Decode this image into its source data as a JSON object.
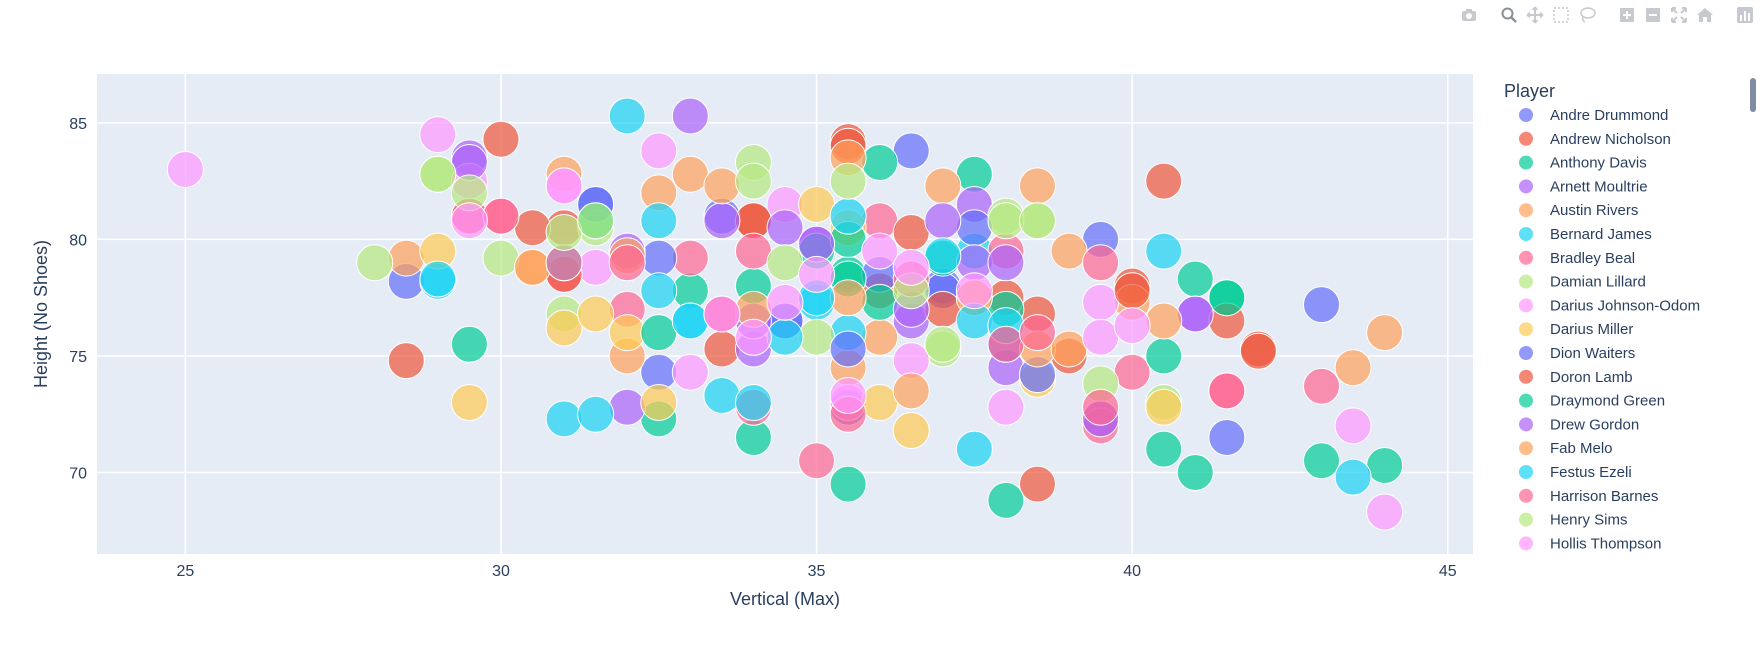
{
  "modebar": {
    "buttons": [
      {
        "icon": "camera-icon",
        "name": "download-png-button"
      },
      {
        "icon": "zoom-icon",
        "name": "zoom-button"
      },
      {
        "icon": "pan-icon",
        "name": "pan-button"
      },
      {
        "icon": "box-select-icon",
        "name": "box-select-button"
      },
      {
        "icon": "lasso-select-icon",
        "name": "lasso-select-button"
      },
      {
        "icon": "zoom-in-icon",
        "name": "zoom-in-button"
      },
      {
        "icon": "zoom-out-icon",
        "name": "zoom-out-button"
      },
      {
        "icon": "autoscale-icon",
        "name": "autoscale-button"
      },
      {
        "icon": "reset-axes-icon",
        "name": "reset-axes-button"
      },
      {
        "icon": "plotly-logo-icon",
        "name": "plotly-logo-link"
      }
    ]
  },
  "chart_data": {
    "type": "scatter",
    "xlabel": "Vertical (Max)",
    "ylabel": "Height (No Shoes)",
    "xlim": [
      23.6,
      45.4
    ],
    "ylim": [
      66.5,
      87.1
    ],
    "xticks": [
      25,
      30,
      35,
      40,
      45
    ],
    "yticks": [
      70,
      75,
      80,
      85
    ],
    "grid": true,
    "plot_bgcolor": "#E5ECF6",
    "legend": {
      "title": "Player",
      "placement": "right"
    },
    "series": [
      {
        "name": "Andre Drummond",
        "color": "#636EFA",
        "points": [
          [
            28.5,
            78.2
          ],
          [
            31.5,
            81.5
          ],
          [
            32.5,
            74.3
          ],
          [
            35.5,
            72.8
          ],
          [
            36.5,
            83.8
          ],
          [
            39.5,
            80
          ],
          [
            41.5,
            71.5
          ],
          [
            43,
            77.2
          ],
          [
            34.5,
            76.5
          ],
          [
            37,
            78
          ]
        ]
      },
      {
        "name": "Andrew Nicholson",
        "color": "#EF553B",
        "points": [
          [
            28.5,
            74.8
          ],
          [
            29.5,
            81
          ],
          [
            31,
            80.5
          ],
          [
            33.5,
            75.3
          ],
          [
            35.5,
            84.2
          ],
          [
            36,
            77.8
          ],
          [
            38.5,
            76.8
          ],
          [
            38.5,
            69.5
          ],
          [
            40,
            78
          ],
          [
            40.5,
            82.5
          ],
          [
            42,
            75.3
          ],
          [
            34,
            80.8
          ]
        ]
      },
      {
        "name": "Anthony Davis",
        "color": "#00CC96",
        "points": [
          [
            29.5,
            75.5
          ],
          [
            32.5,
            72.3
          ],
          [
            33,
            77.8
          ],
          [
            34,
            71.5
          ],
          [
            35.5,
            69.5
          ],
          [
            36,
            83.3
          ],
          [
            37.5,
            82.8
          ],
          [
            38,
            68.8
          ],
          [
            40.5,
            71
          ],
          [
            41,
            70
          ],
          [
            43,
            70.5
          ],
          [
            44,
            70.3
          ],
          [
            41.5,
            77.5
          ],
          [
            35.5,
            78.5
          ]
        ]
      },
      {
        "name": "Arnett Moultrie",
        "color": "#AB63FA",
        "points": [
          [
            29.5,
            83.5
          ],
          [
            33,
            85.3
          ],
          [
            32,
            72.8
          ],
          [
            34,
            75.3
          ],
          [
            36.5,
            76.5
          ],
          [
            37.5,
            81.5
          ],
          [
            38,
            74.5
          ],
          [
            39.5,
            72.3
          ],
          [
            41,
            76.8
          ],
          [
            35,
            79.8
          ]
        ]
      },
      {
        "name": "Austin Rivers",
        "color": "#FFA15A",
        "points": [
          [
            28.5,
            79.2
          ],
          [
            30.5,
            78.8
          ],
          [
            31,
            82.8
          ],
          [
            32.5,
            82
          ],
          [
            33,
            82.8
          ],
          [
            35.5,
            74.5
          ],
          [
            36,
            75.8
          ],
          [
            37,
            82.3
          ],
          [
            38.5,
            82.3
          ],
          [
            39,
            79.5
          ],
          [
            40,
            77.3
          ],
          [
            43.5,
            74.5
          ],
          [
            44,
            76
          ],
          [
            32,
            75
          ]
        ]
      },
      {
        "name": "Bernard James",
        "color": "#19D3F3",
        "points": [
          [
            29,
            78.2
          ],
          [
            31,
            72.3
          ],
          [
            31.5,
            72.5
          ],
          [
            32,
            85.3
          ],
          [
            32.5,
            80.8
          ],
          [
            33,
            76.5
          ],
          [
            33.5,
            73.3
          ],
          [
            35,
            77.3
          ],
          [
            35.5,
            76
          ],
          [
            37.5,
            71
          ],
          [
            43.5,
            69.8
          ],
          [
            40.5,
            79.5
          ],
          [
            37.5,
            79.5
          ]
        ]
      },
      {
        "name": "Bradley Beal",
        "color": "#FF6692",
        "points": [
          [
            30,
            81
          ],
          [
            31,
            78.5
          ],
          [
            32,
            77
          ],
          [
            33,
            79.2
          ],
          [
            34,
            72.8
          ],
          [
            35,
            70.5
          ],
          [
            36,
            80.8
          ],
          [
            38,
            79.5
          ],
          [
            39.5,
            79
          ],
          [
            40,
            74.3
          ],
          [
            41.5,
            73.5
          ],
          [
            43,
            73.7
          ],
          [
            39.5,
            72
          ]
        ]
      },
      {
        "name": "Damian Lillard",
        "color": "#B6E880",
        "points": [
          [
            28,
            79
          ],
          [
            29,
            82.8
          ],
          [
            30,
            79.2
          ],
          [
            31,
            76.8
          ],
          [
            31.5,
            80.5
          ],
          [
            34,
            83.3
          ],
          [
            35,
            75.8
          ],
          [
            37,
            75.3
          ],
          [
            38.5,
            80.8
          ],
          [
            39.5,
            73.8
          ],
          [
            40.5,
            73
          ],
          [
            38,
            81
          ]
        ]
      },
      {
        "name": "Darius Johnson-Odom",
        "color": "#FF97FF",
        "points": [
          [
            25,
            83
          ],
          [
            29,
            84.5
          ],
          [
            29.5,
            82.5
          ],
          [
            31,
            82.3
          ],
          [
            31.5,
            78.8
          ],
          [
            32.5,
            83.8
          ],
          [
            33,
            74.3
          ],
          [
            34.5,
            81.5
          ],
          [
            35.5,
            73
          ],
          [
            36.5,
            74.8
          ],
          [
            38,
            72.8
          ],
          [
            39.5,
            77.3
          ],
          [
            43.5,
            72
          ],
          [
            44,
            68.3
          ]
        ]
      },
      {
        "name": "Darius Miller",
        "color": "#FECB52",
        "points": [
          [
            29,
            79.5
          ],
          [
            29.5,
            73
          ],
          [
            31,
            76.2
          ],
          [
            31.5,
            76.8
          ],
          [
            32,
            76
          ],
          [
            32.5,
            73
          ],
          [
            35,
            81.5
          ],
          [
            36,
            73
          ],
          [
            36.5,
            71.8
          ],
          [
            37.5,
            77.5
          ],
          [
            38.5,
            74
          ],
          [
            40.5,
            72.8
          ],
          [
            35.5,
            80.5
          ]
        ]
      },
      {
        "name": "Dion Waiters",
        "color": "#636EFA",
        "points": [
          [
            31.5,
            81.5
          ],
          [
            32.5,
            79.2
          ],
          [
            33.5,
            81
          ],
          [
            34.5,
            76.5
          ],
          [
            35.5,
            75.3
          ],
          [
            36,
            78.5
          ],
          [
            37,
            77.8
          ],
          [
            37.5,
            80.5
          ],
          [
            38,
            75.5
          ],
          [
            38.5,
            74.2
          ]
        ]
      },
      {
        "name": "Doron Lamb",
        "color": "#EF553B",
        "points": [
          [
            30,
            84.3
          ],
          [
            30.5,
            80.5
          ],
          [
            31,
            78.5
          ],
          [
            33.5,
            76.8
          ],
          [
            34,
            80.8
          ],
          [
            35.5,
            84
          ],
          [
            36.5,
            80.3
          ],
          [
            37,
            77
          ],
          [
            38,
            77.5
          ],
          [
            39,
            75
          ],
          [
            41.5,
            76.5
          ],
          [
            42,
            75.2
          ],
          [
            40,
            77.8
          ]
        ]
      },
      {
        "name": "Draymond Green",
        "color": "#00CC96",
        "points": [
          [
            31.5,
            80.8
          ],
          [
            32.5,
            76
          ],
          [
            34,
            78
          ],
          [
            35,
            79.5
          ],
          [
            35.5,
            78.3
          ],
          [
            36,
            77.3
          ],
          [
            37,
            79.2
          ],
          [
            38,
            77
          ],
          [
            40.5,
            75
          ],
          [
            41,
            78.3
          ],
          [
            41.5,
            77.5
          ],
          [
            35.5,
            80
          ]
        ]
      },
      {
        "name": "Drew Gordon",
        "color": "#AB63FA",
        "points": [
          [
            29.5,
            83.3
          ],
          [
            32,
            79.5
          ],
          [
            33.5,
            80.8
          ],
          [
            34,
            76.5
          ],
          [
            34.5,
            80.5
          ],
          [
            35,
            79.8
          ],
          [
            36.5,
            77
          ],
          [
            37,
            80.8
          ],
          [
            37.5,
            79
          ],
          [
            38,
            79
          ],
          [
            39.5,
            72.3
          ],
          [
            41,
            76.8
          ]
        ]
      },
      {
        "name": "Fab Melo",
        "color": "#FFA15A",
        "points": [
          [
            30.5,
            78.8
          ],
          [
            32,
            79.3
          ],
          [
            33.5,
            82.3
          ],
          [
            34,
            77
          ],
          [
            35.5,
            77.5
          ],
          [
            35.5,
            83.5
          ],
          [
            36.5,
            73.5
          ],
          [
            37.5,
            77.5
          ],
          [
            38.5,
            75.3
          ],
          [
            40.5,
            76.5
          ],
          [
            39,
            75.3
          ]
        ]
      },
      {
        "name": "Festus Ezeli",
        "color": "#19D3F3",
        "points": [
          [
            29,
            78.3
          ],
          [
            31,
            79
          ],
          [
            32.5,
            77.8
          ],
          [
            33,
            76.5
          ],
          [
            34,
            73
          ],
          [
            34.5,
            75.8
          ],
          [
            35,
            77.5
          ],
          [
            35.5,
            81
          ],
          [
            37,
            79.3
          ],
          [
            37.5,
            76.5
          ],
          [
            38,
            76.3
          ]
        ]
      },
      {
        "name": "Harrison Barnes",
        "color": "#FF6692",
        "points": [
          [
            29.5,
            81
          ],
          [
            30,
            81
          ],
          [
            31,
            79
          ],
          [
            32,
            79
          ],
          [
            33.5,
            76.8
          ],
          [
            34,
            79.5
          ],
          [
            35.5,
            72.5
          ],
          [
            36.5,
            78.3
          ],
          [
            38,
            75.5
          ],
          [
            38.5,
            76
          ],
          [
            39.5,
            72.8
          ],
          [
            41.5,
            73.5
          ]
        ]
      },
      {
        "name": "Henry Sims",
        "color": "#B6E880",
        "points": [
          [
            29,
            82.8
          ],
          [
            29.5,
            82
          ],
          [
            31,
            80.3
          ],
          [
            31.5,
            80.8
          ],
          [
            34,
            82.5
          ],
          [
            34.5,
            79
          ],
          [
            35.5,
            82.5
          ],
          [
            36.5,
            77.8
          ],
          [
            37,
            75.5
          ],
          [
            38,
            80.8
          ],
          [
            38.5,
            80.8
          ]
        ]
      },
      {
        "name": "Hollis Thompson",
        "color": "#FF97FF",
        "points": [
          [
            29.5,
            80.8
          ],
          [
            31,
            82.3
          ],
          [
            33.5,
            76.8
          ],
          [
            34,
            75.8
          ],
          [
            34.5,
            77.3
          ],
          [
            35,
            78.5
          ],
          [
            35.5,
            73.3
          ],
          [
            36,
            79.5
          ],
          [
            36.5,
            78.8
          ],
          [
            37.5,
            77.8
          ],
          [
            39.5,
            75.8
          ],
          [
            40,
            76.3
          ]
        ]
      }
    ]
  }
}
